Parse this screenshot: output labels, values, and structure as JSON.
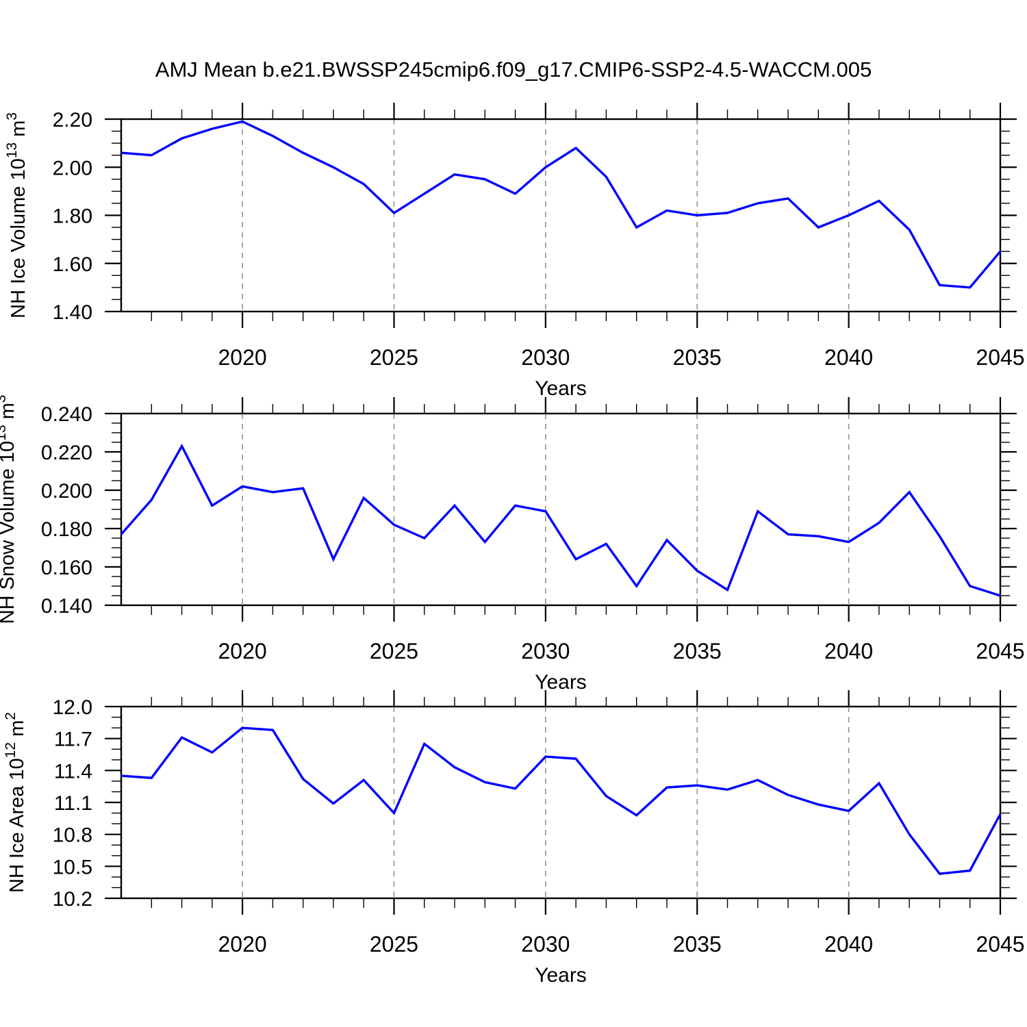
{
  "title": "AMJ Mean b.e21.BWSSP245cmip6.f09_g17.CMIP6-SSP2-4.5-WACCM.005",
  "xlabel": "Years",
  "x_tick_labels": [
    "2020",
    "2025",
    "2030",
    "2035",
    "2040",
    "2045"
  ],
  "line_color": "#0000ff",
  "grid_color": "#8c8c8c",
  "years": [
    2016,
    2017,
    2018,
    2019,
    2020,
    2021,
    2022,
    2023,
    2024,
    2025,
    2026,
    2027,
    2028,
    2029,
    2030,
    2031,
    2032,
    2033,
    2034,
    2035,
    2036,
    2037,
    2038,
    2039,
    2040,
    2041,
    2042,
    2043,
    2044,
    2045
  ],
  "chart_data": [
    {
      "type": "line",
      "id": "nh-ice-volume",
      "ylabel": "NH Ice Volume 10^13 m^3",
      "ylabel_parts": [
        {
          "t": "NH Ice Volume 10"
        },
        {
          "t": "13",
          "sup": true
        },
        {
          "t": " m"
        },
        {
          "t": "3",
          "sup": true
        }
      ],
      "xlabel": "Years",
      "ylim": [
        1.4,
        2.2
      ],
      "ytick_major": 0.2,
      "ytick_minor": 0.05,
      "ydecimals": 2,
      "xlim": [
        2016,
        2045
      ],
      "grid_years": [
        2020,
        2025,
        2030,
        2035,
        2040
      ],
      "values": [
        2.06,
        2.05,
        2.12,
        2.16,
        2.19,
        2.13,
        2.06,
        2.0,
        1.93,
        1.81,
        1.89,
        1.97,
        1.95,
        1.89,
        2.0,
        2.08,
        1.96,
        1.75,
        1.82,
        1.8,
        1.81,
        1.85,
        1.87,
        1.75,
        1.8,
        1.86,
        1.74,
        1.51,
        1.5,
        1.65
      ]
    },
    {
      "type": "line",
      "id": "nh-snow-volume",
      "ylabel": "NH Snow Volume 10^13 m^3",
      "ylabel_parts": [
        {
          "t": "NH Snow Volume 10"
        },
        {
          "t": "13",
          "sup": true
        },
        {
          "t": " m"
        },
        {
          "t": "3",
          "sup": true
        }
      ],
      "xlabel": "Years",
      "ylim": [
        0.14,
        0.24
      ],
      "ytick_major": 0.02,
      "ytick_minor": 0.005,
      "ydecimals": 3,
      "xlim": [
        2016,
        2045
      ],
      "grid_years": [
        2020,
        2025,
        2030,
        2035,
        2040
      ],
      "values": [
        0.177,
        0.195,
        0.223,
        0.192,
        0.202,
        0.199,
        0.201,
        0.164,
        0.196,
        0.182,
        0.175,
        0.192,
        0.173,
        0.192,
        0.189,
        0.164,
        0.172,
        0.15,
        0.174,
        0.158,
        0.148,
        0.189,
        0.177,
        0.176,
        0.173,
        0.183,
        0.199,
        0.176,
        0.15,
        0.145
      ]
    },
    {
      "type": "line",
      "id": "nh-ice-area",
      "ylabel": "NH Ice Area 10^12 m^2",
      "ylabel_parts": [
        {
          "t": "NH Ice Area 10"
        },
        {
          "t": "12",
          "sup": true
        },
        {
          "t": " m"
        },
        {
          "t": "2",
          "sup": true
        }
      ],
      "xlabel": "Years",
      "ylim": [
        10.2,
        12.0
      ],
      "ytick_major": 0.3,
      "ytick_minor": 0.1,
      "ydecimals": 1,
      "xlim": [
        2016,
        2045
      ],
      "grid_years": [
        2020,
        2025,
        2030,
        2035,
        2040
      ],
      "values": [
        11.35,
        11.33,
        11.71,
        11.57,
        11.8,
        11.78,
        11.32,
        11.09,
        11.31,
        11.0,
        11.65,
        11.43,
        11.29,
        11.23,
        11.53,
        11.51,
        11.16,
        10.98,
        11.24,
        11.26,
        11.22,
        11.31,
        11.17,
        11.08,
        11.02,
        11.28,
        10.8,
        10.43,
        10.46,
        10.99
      ]
    }
  ]
}
